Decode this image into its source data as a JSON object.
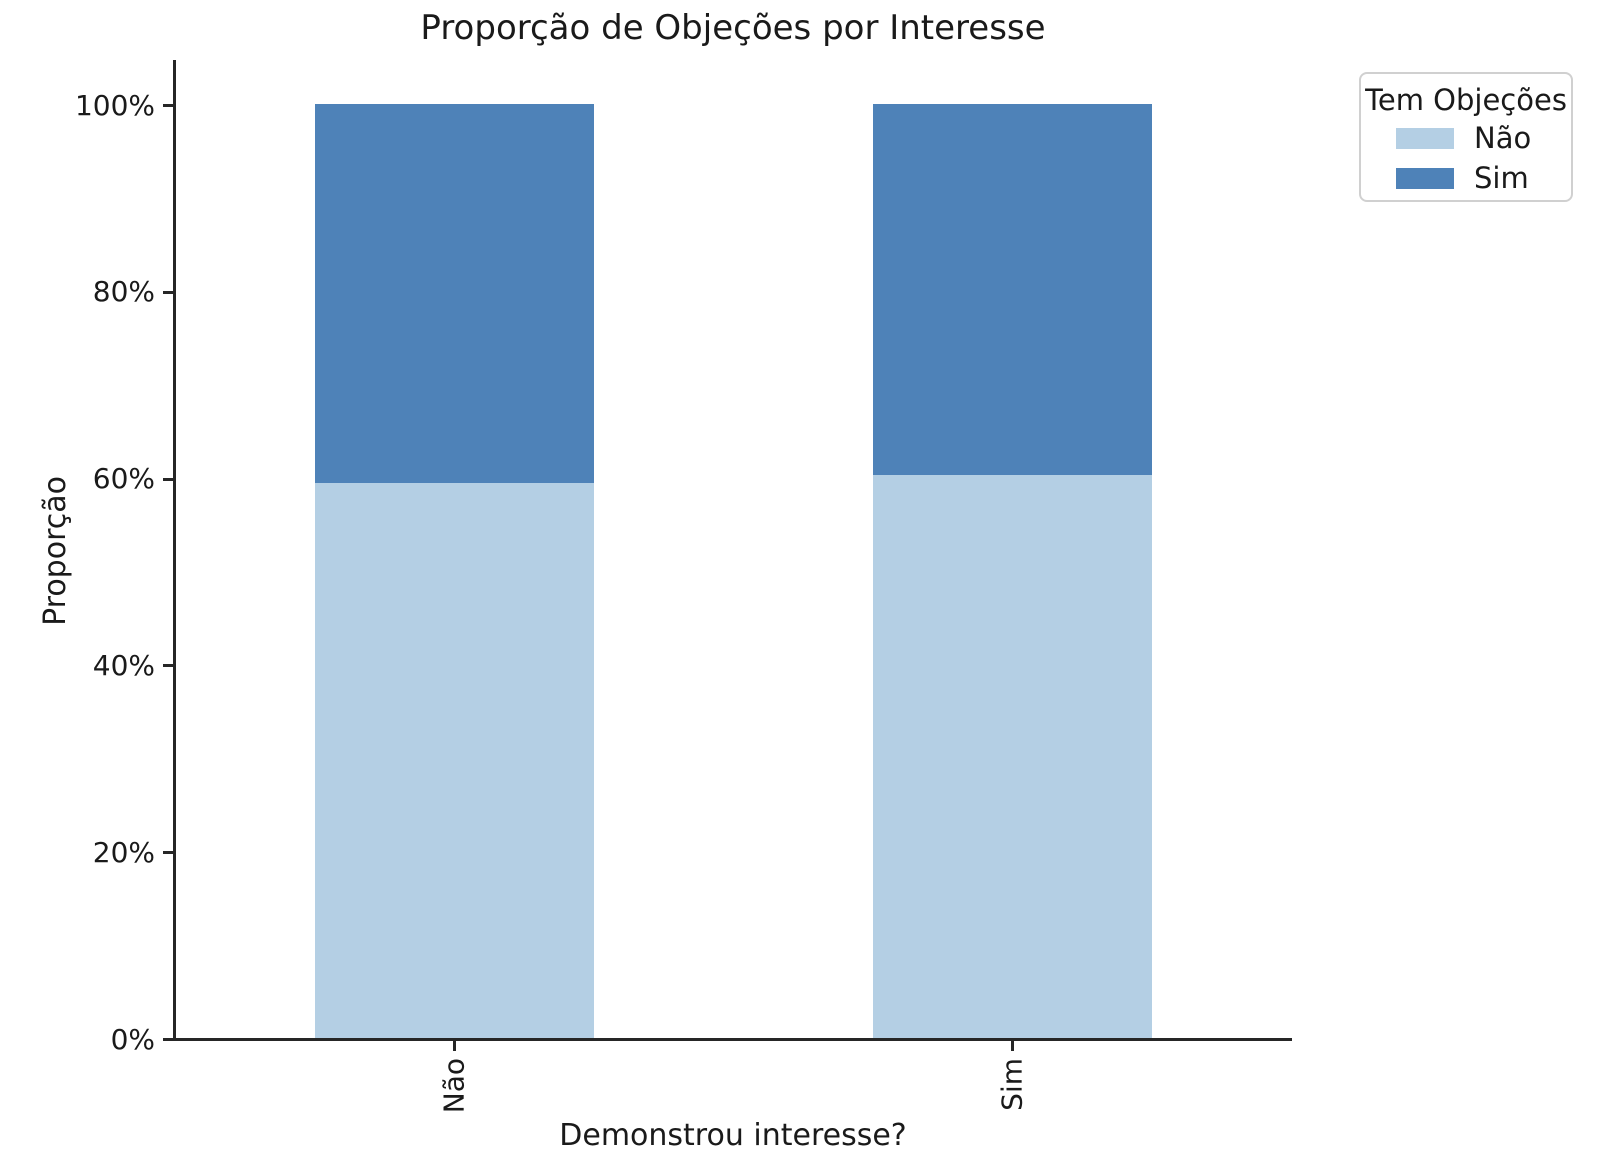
{
  "figure": {
    "background": "#ffffff",
    "text_color": "#1a1a1a",
    "spine_color": "#262626"
  },
  "chart_data": {
    "type": "bar",
    "stacked": true,
    "normalized_percent": true,
    "title": "Proporção de Objeções por Interesse",
    "xlabel": "Demonstrou interesse?",
    "ylabel": "Proporção",
    "categories": [
      "Não",
      "Sim"
    ],
    "series": [
      {
        "name": "Não",
        "color": "#b4cfe4",
        "values": [
          59.4,
          60.3
        ]
      },
      {
        "name": "Sim",
        "color": "#4e82b8",
        "values": [
          40.6,
          39.7
        ]
      }
    ],
    "y_ticks": [
      {
        "value": 0,
        "label": "0%"
      },
      {
        "value": 20,
        "label": "20%"
      },
      {
        "value": 40,
        "label": "40%"
      },
      {
        "value": 60,
        "label": "60%"
      },
      {
        "value": 80,
        "label": "80%"
      },
      {
        "value": 100,
        "label": "100%"
      }
    ],
    "ylim": [
      0,
      105
    ],
    "grid": false,
    "bar_width_fraction": 0.5,
    "legend": {
      "title": "Tem Objeções",
      "position": "outside-upper-right",
      "entries": [
        {
          "label": "Não",
          "color": "#b4cfe4"
        },
        {
          "label": "Sim",
          "color": "#4e82b8"
        }
      ]
    }
  }
}
